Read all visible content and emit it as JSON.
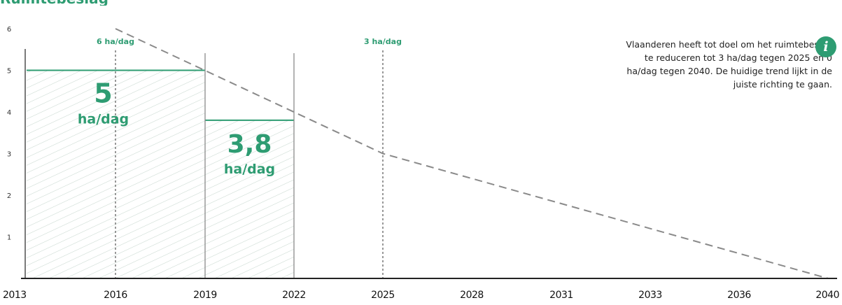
{
  "header": {
    "title": "Ruimtebeslag"
  },
  "info": {
    "icon": "info-icon",
    "glyph": "i",
    "text": "Vlaanderen heeft tot doel om het ruimtebeslag te reduceren tot 3 ha/dag tegen 2025 en 0 ha/dag tegen 2040. De huidige trend lijkt in de juiste richting te gaan."
  },
  "colors": {
    "accent": "#2e9c72",
    "axis": "#222222",
    "line": "#8a8a8a",
    "hatch": "#c9d8d0"
  },
  "chart_data": {
    "type": "area",
    "x_ticks": [
      "2013",
      "2016",
      "2019",
      "2022",
      "2025",
      "2028",
      "2031",
      "2033",
      "2036",
      "2040"
    ],
    "y_ticks": [
      "1",
      "2",
      "3",
      "4",
      "5",
      "6"
    ],
    "ylim": [
      0,
      6
    ],
    "grid": false,
    "periods": [
      {
        "from_tick": 0,
        "to_tick": 2,
        "value": 5,
        "label_value": "5",
        "label_unit": "ha/dag"
      },
      {
        "from_tick": 2,
        "to_tick": 3,
        "value": 3.8,
        "label_value": "3,8",
        "label_unit": "ha/dag"
      }
    ],
    "target_line": {
      "style": "dashed",
      "points": [
        {
          "tick": 1,
          "value": 6
        },
        {
          "tick": 4,
          "value": 3
        },
        {
          "tick": 9,
          "value": 0
        }
      ]
    },
    "markers": [
      {
        "tick": 1,
        "label": "6 ha/dag"
      },
      {
        "tick": 4,
        "label": "3 ha/dag"
      }
    ]
  }
}
